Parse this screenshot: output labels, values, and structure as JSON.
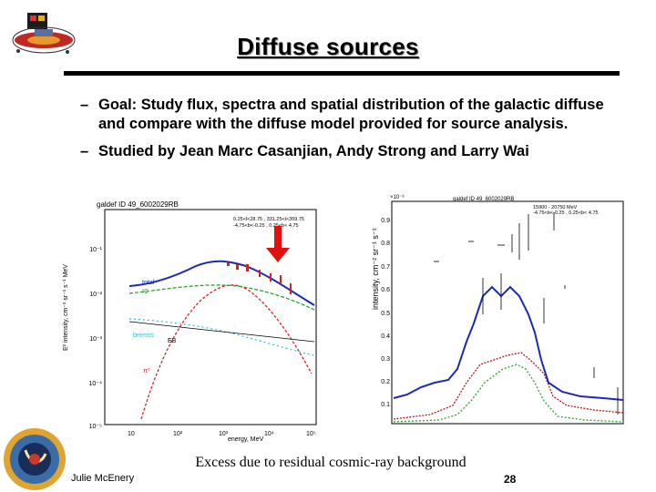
{
  "slide": {
    "title": "Diffuse sources",
    "bullets": [
      "Goal: Study flux, spectra and spatial distribution of the galactic diffuse and compare with the diffuse model provided for source analysis.",
      "Studied by Jean Marc Casanjian, Andy Strong and Larry Wai"
    ],
    "bullet_marker": "–",
    "caption": "Excess due to residual cosmic-ray background",
    "author": "Julie McEnery",
    "page_number": "28"
  },
  "left_plot": {
    "title": "galdef ID 49_6002029RB",
    "info_line1": "0.25<l<28.75 , 331.25<l<359.75",
    "info_line2": "-4.75<b<-0.25 , 0.25<b< 4.75",
    "xlabel": "energy, MeV",
    "ylabel": "E² intensity, cm⁻² sr⁻¹ s⁻¹ MeV",
    "xticks": [
      "10",
      "10²",
      "10³",
      "10⁴",
      "10⁵"
    ],
    "yticks": [
      "10⁻¹",
      "10⁻²",
      "10⁻³",
      "10⁻⁴",
      "10⁻⁵"
    ],
    "label_total": "total",
    "label_ic": "IC",
    "label_bremss": "bremss",
    "label_eb": "EB",
    "label_pi0": "π⁰",
    "colors": {
      "total": "#1b2bb5",
      "ic": "#22a822",
      "bremss": "#22c4d4",
      "eb": "#000000",
      "pi0": "#d42222",
      "arrow": "#e31010"
    }
  },
  "right_plot": {
    "title": "galdef ID 49_6002029RB",
    "info_line1": "15900 - 20750 MeV",
    "info_line2": "-4.75<b<-0.25 , 0.25<b< 4.75",
    "exponent": "×10⁻⁶",
    "ylabel": "intensity, cm⁻² sr⁻¹ s⁻¹",
    "yticks": [
      "0.9",
      "0.8",
      "0.7",
      "0.6",
      "0.5",
      "0.4",
      "0.3",
      "0.2",
      "0.1"
    ]
  }
}
